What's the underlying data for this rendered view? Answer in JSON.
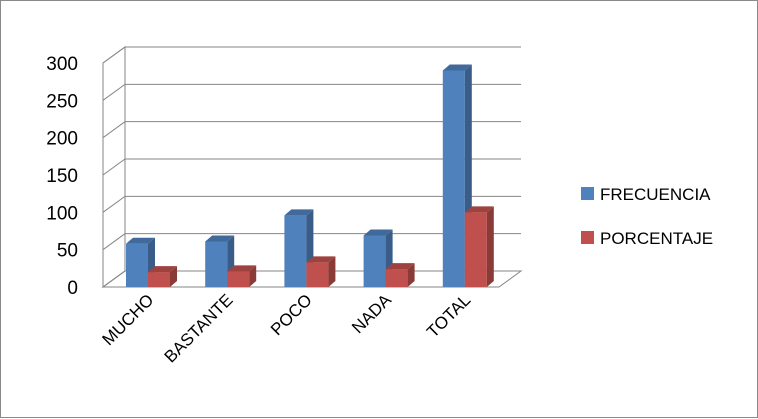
{
  "chart_data": {
    "type": "bar",
    "categories": [
      "MUCHO",
      "BASTANTE",
      "POCO",
      "NADA",
      "TOTAL"
    ],
    "series": [
      {
        "name": "FRECUENCIA",
        "values": [
          58,
          61,
          96,
          69,
          290
        ],
        "color": "#4f81bd"
      },
      {
        "name": "PORCENTAJE",
        "values": [
          20,
          21,
          33,
          24,
          100
        ],
        "color": "#c0504d"
      }
    ],
    "ylim": [
      0,
      300
    ],
    "yticks": [
      0,
      50,
      100,
      150,
      200,
      250,
      300
    ],
    "grid": true,
    "legend_position": "right",
    "title": "",
    "xlabel": "",
    "ylabel": ""
  }
}
